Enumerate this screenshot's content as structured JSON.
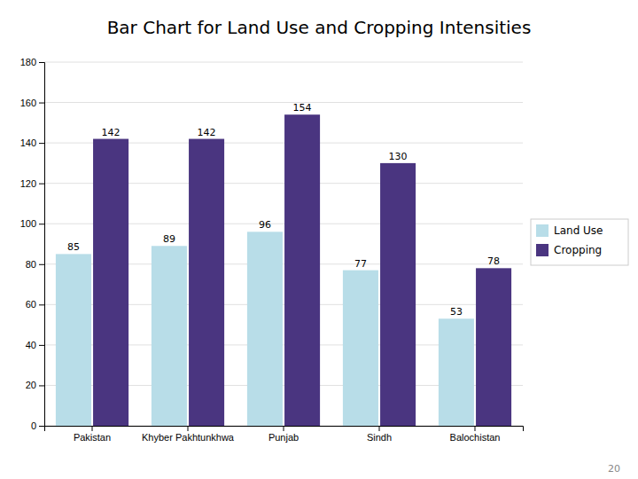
{
  "chart_data": {
    "type": "bar",
    "title": "Bar Chart for Land Use and Cropping Intensities",
    "annotations": [
      "20"
    ],
    "categories": [
      "Pakistan",
      "Khyber Pakhtunkhwa",
      "Punjab",
      "Sindh",
      "Balochistan"
    ],
    "series": [
      {
        "name": "Land Use",
        "color": "#b8dde8",
        "values": [
          85,
          89,
          96,
          77,
          53
        ]
      },
      {
        "name": "Cropping",
        "color": "#4a3580",
        "values": [
          142,
          142,
          154,
          130,
          78
        ]
      }
    ],
    "ylim": [
      0,
      180
    ],
    "yticks": [
      0,
      20,
      40,
      60,
      80,
      100,
      120,
      140,
      160,
      180
    ],
    "grid": true,
    "legend": "right",
    "data_labels": true
  }
}
